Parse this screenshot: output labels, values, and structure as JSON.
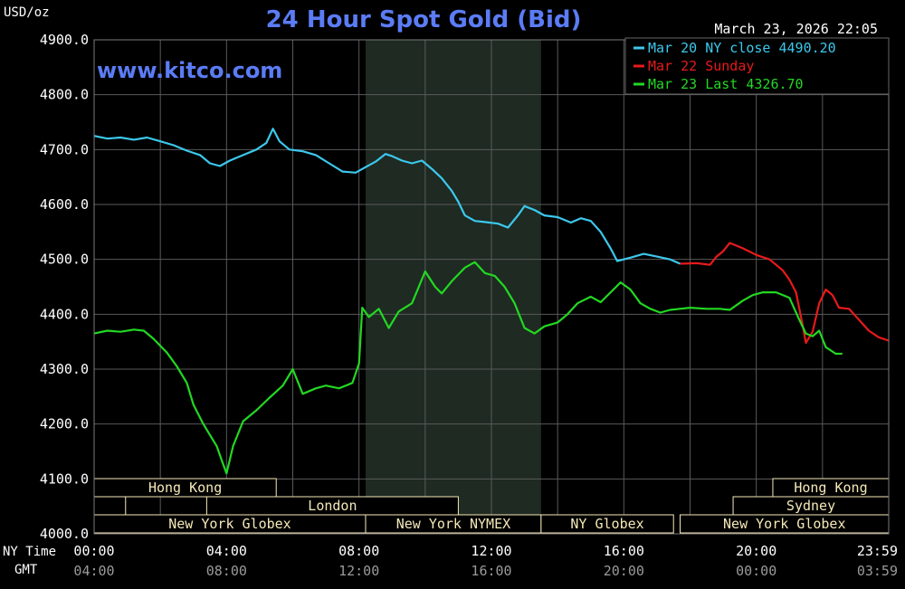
{
  "header": {
    "title": "24 Hour Spot Gold (Bid)",
    "unit_label": "USD/oz",
    "timestamp": "March 23, 2026 22:05",
    "watermark": "www.kitco.com"
  },
  "axis_labels": {
    "ny_time": "NY Time",
    "gmt": "GMT"
  },
  "colors": {
    "background": "#000000",
    "plot_background": "#000000",
    "shade": "#1f2a22",
    "grid": "#5a5a5a",
    "text": "#ffffff",
    "title": "#5b7cf5",
    "tick_gmt": "#9a9a9a",
    "session_box": "#f5e9b8",
    "series_mar20": "#3cc8ec",
    "series_mar22": "#e81a1a",
    "series_mar23": "#22d822"
  },
  "chart_data": {
    "type": "line",
    "title": "24 Hour Spot Gold (Bid)",
    "ylabel": "USD/oz",
    "ylim": [
      4000,
      4900
    ],
    "xlim": [
      0,
      24
    ],
    "grid": true,
    "legend_position": "top-right",
    "yticks": [
      "4900.0",
      "4800.0",
      "4700.0",
      "4600.0",
      "4500.0",
      "4400.0",
      "4300.0",
      "4200.0",
      "4100.0",
      "4000.0"
    ],
    "ytick_values": [
      4900,
      4800,
      4700,
      4600,
      4500,
      4400,
      4300,
      4200,
      4100,
      4000
    ],
    "xticks_ny": [
      "00:00",
      "04:00",
      "08:00",
      "12:00",
      "16:00",
      "20:00",
      "23:59"
    ],
    "xticks_gmt": [
      "04:00",
      "08:00",
      "12:00",
      "16:00",
      "20:00",
      "00:00",
      "03:59"
    ],
    "xtick_hours": [
      0,
      4,
      8,
      12,
      16,
      20,
      24
    ],
    "shaded_range": [
      8.2,
      13.5
    ],
    "sessions": [
      {
        "label": "Hong Kong",
        "row": 0,
        "start": 0,
        "end": 5.5
      },
      {
        "label": "",
        "row": 1,
        "start": 0,
        "end": 0.95
      },
      {
        "label": "London",
        "row": 1,
        "start": 3.4,
        "end": 11
      },
      {
        "label": "New York Globex",
        "row": 2,
        "start": 0,
        "end": 8.2
      },
      {
        "label": "New York NYMEX",
        "row": 2,
        "start": 8.2,
        "end": 13.5
      },
      {
        "label": "NY Globex",
        "row": 2,
        "start": 13.5,
        "end": 17.5
      },
      {
        "label": "Hong Kong",
        "row": 0,
        "start": 20.5,
        "end": 24
      },
      {
        "label": "Sydney",
        "row": 1,
        "start": 19.3,
        "end": 24
      },
      {
        "label": "New York Globex",
        "row": 2,
        "start": 17.7,
        "end": 24
      }
    ],
    "series": [
      {
        "name": "Mar 20 NY close 4490.20",
        "color_key": "series_mar20",
        "points": [
          [
            0,
            4725
          ],
          [
            0.4,
            4720
          ],
          [
            0.8,
            4722
          ],
          [
            1.2,
            4718
          ],
          [
            1.6,
            4722
          ],
          [
            2.0,
            4715
          ],
          [
            2.4,
            4708
          ],
          [
            2.8,
            4698
          ],
          [
            3.2,
            4690
          ],
          [
            3.5,
            4675
          ],
          [
            3.8,
            4670
          ],
          [
            4.1,
            4680
          ],
          [
            4.5,
            4690
          ],
          [
            4.9,
            4700
          ],
          [
            5.2,
            4712
          ],
          [
            5.4,
            4738
          ],
          [
            5.6,
            4715
          ],
          [
            5.9,
            4700
          ],
          [
            6.3,
            4697
          ],
          [
            6.7,
            4690
          ],
          [
            7.1,
            4675
          ],
          [
            7.5,
            4660
          ],
          [
            7.9,
            4658
          ],
          [
            8.2,
            4668
          ],
          [
            8.5,
            4678
          ],
          [
            8.8,
            4692
          ],
          [
            9.0,
            4688
          ],
          [
            9.3,
            4680
          ],
          [
            9.6,
            4675
          ],
          [
            9.9,
            4680
          ],
          [
            10.2,
            4665
          ],
          [
            10.5,
            4648
          ],
          [
            10.8,
            4625
          ],
          [
            11.0,
            4605
          ],
          [
            11.2,
            4580
          ],
          [
            11.5,
            4570
          ],
          [
            11.8,
            4568
          ],
          [
            12.2,
            4565
          ],
          [
            12.5,
            4558
          ],
          [
            12.8,
            4580
          ],
          [
            13.0,
            4597
          ],
          [
            13.3,
            4590
          ],
          [
            13.6,
            4580
          ],
          [
            14.0,
            4577
          ],
          [
            14.4,
            4567
          ],
          [
            14.7,
            4575
          ],
          [
            15.0,
            4570
          ],
          [
            15.3,
            4550
          ],
          [
            15.6,
            4520
          ],
          [
            15.8,
            4497
          ],
          [
            16.2,
            4503
          ],
          [
            16.6,
            4510
          ],
          [
            17.0,
            4505
          ],
          [
            17.4,
            4500
          ],
          [
            17.7,
            4492
          ]
        ]
      },
      {
        "name": "Mar 22 Sunday",
        "color_key": "series_mar22",
        "points": [
          [
            17.7,
            4492
          ],
          [
            18.2,
            4493
          ],
          [
            18.6,
            4490
          ],
          [
            18.8,
            4505
          ],
          [
            19.0,
            4515
          ],
          [
            19.2,
            4530
          ],
          [
            19.6,
            4520
          ],
          [
            20.0,
            4508
          ],
          [
            20.4,
            4500
          ],
          [
            20.8,
            4480
          ],
          [
            21.0,
            4463
          ],
          [
            21.2,
            4440
          ],
          [
            21.4,
            4380
          ],
          [
            21.5,
            4348
          ],
          [
            21.7,
            4368
          ],
          [
            21.9,
            4420
          ],
          [
            22.1,
            4445
          ],
          [
            22.3,
            4435
          ],
          [
            22.5,
            4412
          ],
          [
            22.8,
            4410
          ],
          [
            23.1,
            4390
          ],
          [
            23.4,
            4370
          ],
          [
            23.7,
            4358
          ],
          [
            24.0,
            4352
          ]
        ]
      },
      {
        "name": "Mar 23 Last 4326.70",
        "color_key": "series_mar23",
        "points": [
          [
            0,
            4365
          ],
          [
            0.4,
            4370
          ],
          [
            0.8,
            4368
          ],
          [
            1.2,
            4372
          ],
          [
            1.5,
            4370
          ],
          [
            1.8,
            4355
          ],
          [
            2.2,
            4330
          ],
          [
            2.5,
            4305
          ],
          [
            2.8,
            4275
          ],
          [
            3.0,
            4235
          ],
          [
            3.3,
            4200
          ],
          [
            3.5,
            4180
          ],
          [
            3.7,
            4160
          ],
          [
            3.85,
            4135
          ],
          [
            4.0,
            4110
          ],
          [
            4.2,
            4160
          ],
          [
            4.5,
            4205
          ],
          [
            4.9,
            4225
          ],
          [
            5.3,
            4248
          ],
          [
            5.7,
            4270
          ],
          [
            6.0,
            4300
          ],
          [
            6.3,
            4255
          ],
          [
            6.7,
            4265
          ],
          [
            7.0,
            4270
          ],
          [
            7.4,
            4265
          ],
          [
            7.8,
            4275
          ],
          [
            8.0,
            4310
          ],
          [
            8.1,
            4412
          ],
          [
            8.3,
            4395
          ],
          [
            8.6,
            4410
          ],
          [
            8.9,
            4375
          ],
          [
            9.2,
            4405
          ],
          [
            9.6,
            4420
          ],
          [
            10.0,
            4478
          ],
          [
            10.3,
            4450
          ],
          [
            10.5,
            4438
          ],
          [
            10.8,
            4460
          ],
          [
            11.2,
            4485
          ],
          [
            11.5,
            4495
          ],
          [
            11.8,
            4475
          ],
          [
            12.1,
            4470
          ],
          [
            12.4,
            4450
          ],
          [
            12.7,
            4420
          ],
          [
            13.0,
            4375
          ],
          [
            13.3,
            4365
          ],
          [
            13.6,
            4378
          ],
          [
            14.0,
            4385
          ],
          [
            14.3,
            4400
          ],
          [
            14.6,
            4420
          ],
          [
            15.0,
            4432
          ],
          [
            15.3,
            4422
          ],
          [
            15.6,
            4440
          ],
          [
            15.9,
            4458
          ],
          [
            16.2,
            4445
          ],
          [
            16.5,
            4420
          ],
          [
            16.8,
            4410
          ],
          [
            17.1,
            4403
          ],
          [
            17.4,
            4408
          ],
          [
            17.7,
            4410
          ],
          [
            18.0,
            4412
          ],
          [
            18.5,
            4410
          ],
          [
            18.9,
            4410
          ],
          [
            19.2,
            4408
          ],
          [
            19.6,
            4425
          ],
          [
            19.9,
            4435
          ],
          [
            20.2,
            4440
          ],
          [
            20.6,
            4440
          ],
          [
            21.0,
            4430
          ],
          [
            21.3,
            4390
          ],
          [
            21.5,
            4365
          ],
          [
            21.7,
            4360
          ],
          [
            21.9,
            4370
          ],
          [
            22.1,
            4340
          ],
          [
            22.4,
            4328
          ],
          [
            22.6,
            4328
          ]
        ]
      }
    ]
  }
}
